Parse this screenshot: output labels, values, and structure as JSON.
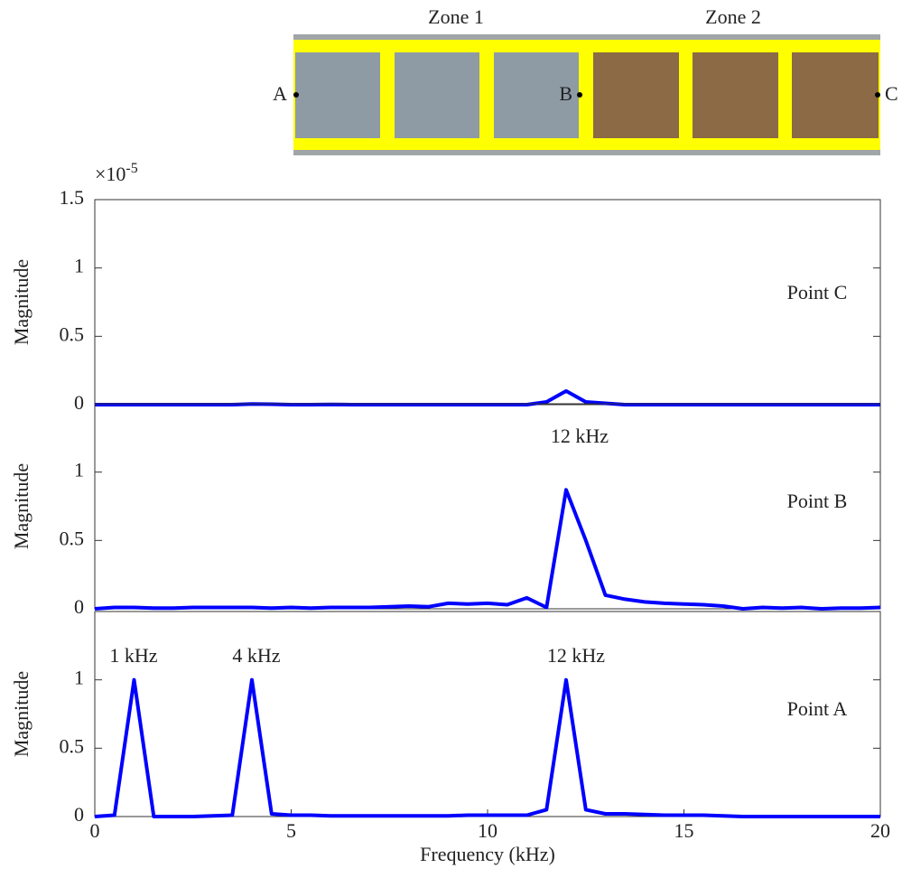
{
  "diagram": {
    "zones": [
      "Zone 1",
      "Zone 2"
    ],
    "points": [
      "A",
      "B",
      "C"
    ]
  },
  "chart_data": [
    {
      "type": "line",
      "label": "Point C",
      "ylabel": "Magnitude",
      "y_multiplier": "×10",
      "y_multiplier_exponent": "-5",
      "xlim": [
        0,
        20
      ],
      "ylim": [
        0,
        1.5
      ],
      "yticks": [
        0,
        0.5,
        1,
        1.5
      ],
      "color": "#0000ff",
      "x": [
        0,
        0.5,
        1,
        1.5,
        2,
        2.5,
        3,
        3.5,
        4,
        4.5,
        5,
        5.5,
        6,
        6.5,
        7,
        7.5,
        8,
        8.5,
        9,
        9.5,
        10,
        10.5,
        11,
        11.5,
        12,
        12.5,
        13,
        13.5,
        14,
        14.5,
        15,
        15.5,
        16,
        16.5,
        17,
        17.5,
        18,
        18.5,
        19,
        19.5,
        20
      ],
      "values": [
        0,
        0,
        0,
        0,
        0,
        0,
        0,
        0,
        0.005,
        0.003,
        0,
        0,
        0.002,
        0,
        0,
        0,
        0,
        0,
        0,
        0,
        0,
        0,
        0,
        0.02,
        0.1,
        0.02,
        0.01,
        0,
        0,
        0,
        0,
        0,
        0,
        0,
        0,
        0,
        0,
        0,
        0,
        0,
        0
      ]
    },
    {
      "type": "line",
      "label": "Point B",
      "ylabel": "Magnitude",
      "annotations": [
        "12 kHz"
      ],
      "xlim": [
        0,
        20
      ],
      "ylim": [
        0,
        1.5
      ],
      "yticks": [
        0,
        0.5,
        1
      ],
      "color": "#0000ff",
      "x": [
        0,
        0.5,
        1,
        1.5,
        2,
        2.5,
        3,
        3.5,
        4,
        4.5,
        5,
        5.5,
        6,
        6.5,
        7,
        7.5,
        8,
        8.5,
        9,
        9.5,
        10,
        10.5,
        11,
        11.5,
        12,
        12.5,
        13,
        13.5,
        14,
        14.5,
        15,
        15.5,
        16,
        16.5,
        17,
        17.5,
        18,
        18.5,
        19,
        19.5,
        20
      ],
      "values": [
        0,
        0.01,
        0.01,
        0.005,
        0.005,
        0.01,
        0.01,
        0.01,
        0.01,
        0.005,
        0.01,
        0.005,
        0.01,
        0.01,
        0.01,
        0.015,
        0.02,
        0.015,
        0.04,
        0.035,
        0.04,
        0.03,
        0.08,
        0.01,
        0.87,
        0.5,
        0.1,
        0.07,
        0.05,
        0.04,
        0.035,
        0.03,
        0.02,
        0,
        0.01,
        0.005,
        0.01,
        0,
        0.005,
        0.005,
        0.01
      ]
    },
    {
      "type": "line",
      "label": "Point A",
      "ylabel": "Magnitude",
      "xlabel": "Frequency (kHz)",
      "annotations": [
        "1 kHz",
        "4 kHz",
        "12 kHz"
      ],
      "xlim": [
        0,
        20
      ],
      "xticks": [
        0,
        5,
        10,
        15,
        20
      ],
      "ylim": [
        0,
        1.5
      ],
      "yticks": [
        0,
        0.5,
        1
      ],
      "color": "#0000ff",
      "x": [
        0,
        0.5,
        1,
        1.5,
        2,
        2.5,
        3,
        3.5,
        4,
        4.5,
        5,
        5.5,
        6,
        6.5,
        7,
        7.5,
        8,
        8.5,
        9,
        9.5,
        10,
        10.5,
        11,
        11.5,
        12,
        12.5,
        13,
        13.5,
        14,
        14.5,
        15,
        15.5,
        16,
        16.5,
        17,
        17.5,
        18,
        18.5,
        19,
        19.5,
        20
      ],
      "values": [
        0,
        0.01,
        1,
        0,
        0,
        0,
        0.005,
        0.01,
        1,
        0.02,
        0.01,
        0.01,
        0.005,
        0.005,
        0.005,
        0.005,
        0.005,
        0.005,
        0.005,
        0.01,
        0.01,
        0.01,
        0.01,
        0.05,
        1,
        0.05,
        0.02,
        0.02,
        0.015,
        0.01,
        0.01,
        0.01,
        0.005,
        0,
        0,
        0,
        0,
        0,
        0,
        0,
        0
      ]
    }
  ]
}
